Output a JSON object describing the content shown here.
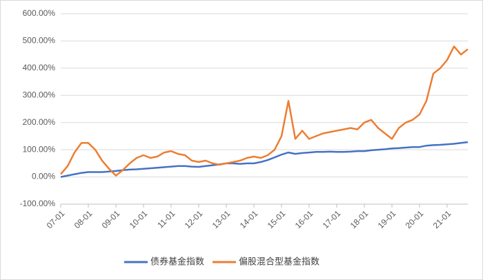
{
  "chart_data": {
    "type": "line",
    "categories": [
      "07-01",
      null,
      null,
      null,
      "08-01",
      null,
      null,
      null,
      "09-01",
      null,
      null,
      null,
      "10-01",
      null,
      null,
      null,
      "11-01",
      null,
      null,
      null,
      "12-01",
      null,
      null,
      null,
      "13-01",
      null,
      null,
      null,
      "14-01",
      null,
      null,
      null,
      "15-01",
      null,
      null,
      null,
      "16-01",
      null,
      null,
      null,
      "17-01",
      null,
      null,
      null,
      "18-01",
      null,
      null,
      null,
      "19-01",
      null,
      null,
      null,
      "20-01",
      null,
      null,
      null,
      "21-01",
      null,
      null,
      null
    ],
    "series": [
      {
        "name": "债券基金指数",
        "color": "#4472c4",
        "values": [
          0,
          5,
          10,
          15,
          18,
          18,
          18,
          20,
          22,
          25,
          27,
          28,
          30,
          32,
          34,
          36,
          38,
          40,
          40,
          38,
          37,
          40,
          43,
          46,
          50,
          50,
          48,
          50,
          50,
          55,
          62,
          72,
          82,
          90,
          85,
          88,
          90,
          92,
          92,
          93,
          92,
          92,
          93,
          95,
          95,
          98,
          100,
          102,
          105,
          106,
          108,
          110,
          110,
          115,
          117,
          118,
          120,
          122,
          125,
          128
        ]
      },
      {
        "name": "偏股混合型基金指数",
        "color": "#ed7d31",
        "values": [
          10,
          40,
          90,
          125,
          125,
          100,
          60,
          30,
          5,
          25,
          50,
          70,
          80,
          70,
          75,
          90,
          95,
          85,
          80,
          60,
          55,
          60,
          50,
          45,
          50,
          55,
          60,
          70,
          75,
          70,
          80,
          100,
          150,
          280,
          140,
          170,
          140,
          150,
          160,
          165,
          170,
          175,
          180,
          175,
          200,
          210,
          180,
          160,
          140,
          180,
          200,
          210,
          230,
          280,
          380,
          400,
          430,
          480,
          450,
          470
        ]
      }
    ],
    "ylim": [
      -100,
      600
    ],
    "yticks": [
      {
        "value": -100,
        "label": "-100.00%"
      },
      {
        "value": 0,
        "label": "0.00%"
      },
      {
        "value": 100,
        "label": "100.00%"
      },
      {
        "value": 200,
        "label": "200.00%"
      },
      {
        "value": 300,
        "label": "300.00%"
      },
      {
        "value": 400,
        "label": "400.00%"
      },
      {
        "value": 500,
        "label": "500.00%"
      },
      {
        "value": 600,
        "label": "600.00%"
      }
    ],
    "grid": true,
    "legend": "bottom"
  }
}
